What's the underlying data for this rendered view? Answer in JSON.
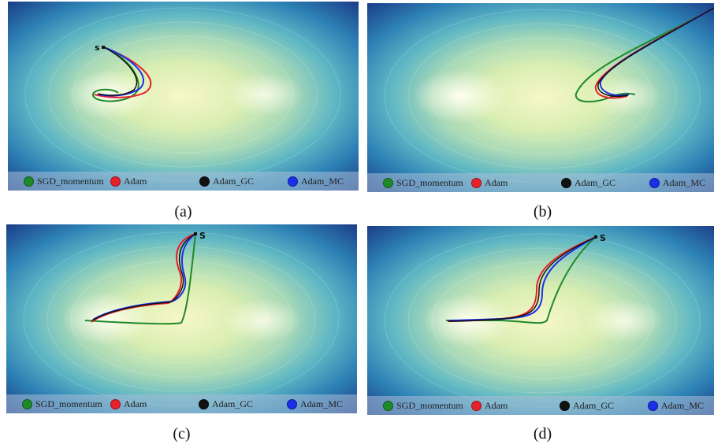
{
  "legend": {
    "items": [
      {
        "label": "SGD_momentum",
        "color": "#1e8a2a"
      },
      {
        "label": "Adam",
        "color": "#e8202a"
      },
      {
        "label": "Adam_GC",
        "color": "#111111"
      },
      {
        "label": "Adam_MC",
        "color": "#1a2fe8"
      }
    ]
  },
  "start_marker": "s",
  "start_marker_cap": "S",
  "panels": [
    {
      "id": "a",
      "caption": "(a)"
    },
    {
      "id": "b",
      "caption": "(b)"
    },
    {
      "id": "c",
      "caption": "(c)"
    },
    {
      "id": "d",
      "caption": "(d)"
    }
  ]
}
